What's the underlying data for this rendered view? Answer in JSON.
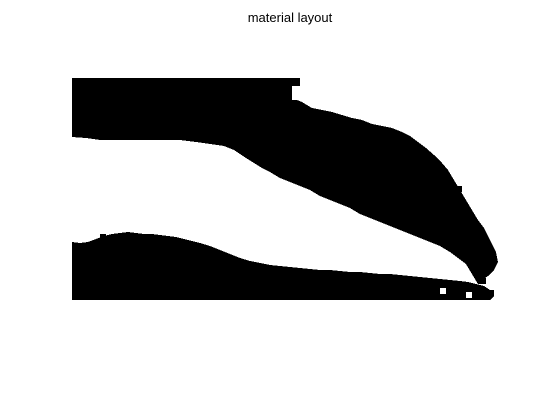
{
  "figure": {
    "title": "material layout",
    "colors": {
      "background": "#ffffff",
      "material": "#000000"
    }
  }
}
